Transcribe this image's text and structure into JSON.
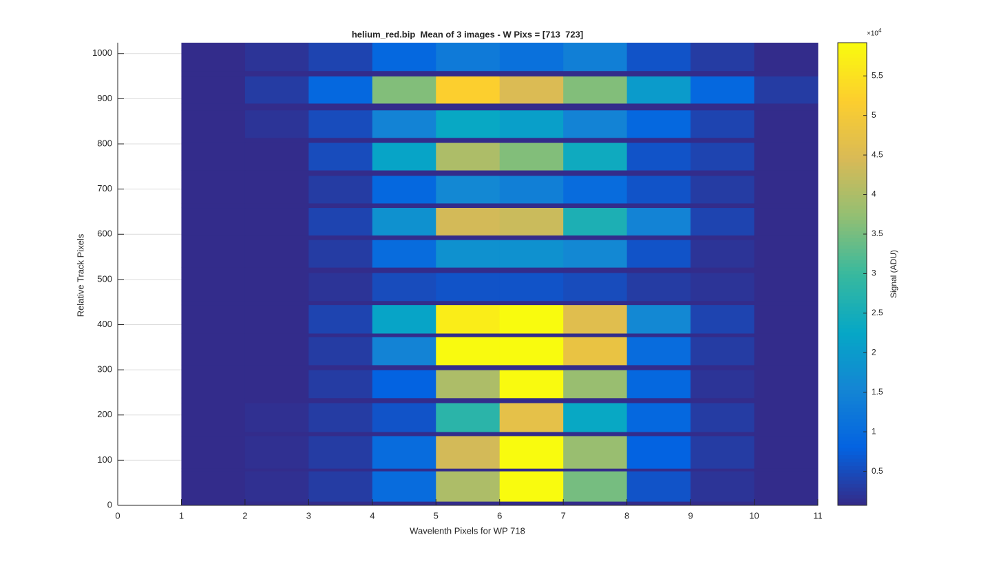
{
  "chart_data": {
    "type": "heatmap",
    "title": "helium_red.bip  Mean of 3 images - W Pixs = [713  723]",
    "x_label": "Wavelenth Pixels for WP 718",
    "y_label": "Relative Track Pixels",
    "colorbar_label": "Signal (ADU)",
    "colorbar_multiplier": "×10",
    "colorbar_exponent": "4",
    "x_bins": [
      1,
      2,
      3,
      4,
      5,
      6,
      7,
      8,
      9,
      10,
      11
    ],
    "y_bins": [
      0,
      9,
      76,
      82,
      154,
      163,
      227,
      238,
      300,
      311,
      373,
      381,
      444,
      453,
      515,
      527,
      588,
      598,
      659,
      669,
      730,
      742,
      803,
      814,
      875,
      890,
      950,
      962,
      1024
    ],
    "values": [
      [
        1000,
        1000,
        1000,
        1000,
        1000,
        1000,
        1000,
        1000,
        1000,
        1000
      ],
      [
        1000,
        1500,
        3000,
        10000,
        40000,
        60000,
        35000,
        6000,
        2000,
        1000
      ],
      [
        1000,
        1000,
        1000,
        1000,
        1000,
        1000,
        1000,
        1000,
        1000,
        1000
      ],
      [
        1000,
        1500,
        3000,
        10000,
        44000,
        60000,
        38000,
        8000,
        3000,
        1000
      ],
      [
        1000,
        1000,
        1000,
        1000,
        1000,
        1000,
        1000,
        1000,
        1000,
        1000
      ],
      [
        1000,
        1500,
        3000,
        6000,
        28000,
        47000,
        23000,
        9000,
        3000,
        1000
      ],
      [
        1000,
        1000,
        1000,
        1000,
        1000,
        1000,
        1000,
        1000,
        1000,
        1000
      ],
      [
        1000,
        1000,
        3000,
        8000,
        40000,
        59000,
        38000,
        9000,
        2000,
        1000
      ],
      [
        1000,
        1000,
        1000,
        1000,
        1000,
        1000,
        1000,
        1000,
        1000,
        1000
      ],
      [
        1000,
        1000,
        3000,
        15000,
        59000,
        60000,
        48000,
        10000,
        3000,
        1000
      ],
      [
        1000,
        1000,
        1000,
        1000,
        1000,
        1000,
        1000,
        1000,
        1000,
        1000
      ],
      [
        1000,
        1000,
        4000,
        22000,
        57000,
        60000,
        46000,
        16000,
        4000,
        1000
      ],
      [
        1000,
        1000,
        1000,
        1000,
        1000,
        1000,
        1000,
        1000,
        1000,
        1000
      ],
      [
        1000,
        1000,
        2000,
        5000,
        6000,
        6000,
        5000,
        3000,
        2000,
        1000
      ],
      [
        1000,
        1000,
        1000,
        1000,
        1000,
        1000,
        1000,
        1000,
        1000,
        1000
      ],
      [
        1000,
        1000,
        3000,
        10000,
        18000,
        18000,
        16000,
        6000,
        2000,
        1000
      ],
      [
        1000,
        1000,
        1000,
        1000,
        1000,
        1000,
        1000,
        1000,
        1000,
        1000
      ],
      [
        1000,
        1000,
        4000,
        18000,
        44000,
        43000,
        26000,
        15000,
        4000,
        1000
      ],
      [
        1000,
        1000,
        1000,
        1000,
        1000,
        1000,
        1000,
        1000,
        1000,
        1000
      ],
      [
        1000,
        1000,
        3000,
        9000,
        16000,
        14000,
        10000,
        6000,
        3000,
        1000
      ],
      [
        1000,
        1000,
        1000,
        1000,
        1000,
        1000,
        1000,
        1000,
        1000,
        1000
      ],
      [
        1000,
        1000,
        5000,
        22000,
        40000,
        36000,
        24000,
        6000,
        4000,
        1000
      ],
      [
        1000,
        1000,
        1000,
        1000,
        1000,
        1000,
        1000,
        1000,
        1000,
        1000
      ],
      [
        1000,
        2000,
        5000,
        15000,
        23000,
        21000,
        15000,
        9000,
        4000,
        1000
      ],
      [
        1000,
        1000,
        1000,
        1000,
        1000,
        1000,
        1000,
        1000,
        1000,
        1000
      ],
      [
        1000,
        3000,
        9000,
        36000,
        52000,
        45000,
        36000,
        20000,
        9000,
        3000
      ],
      [
        1000,
        1000,
        1000,
        1000,
        1000,
        1000,
        1000,
        1000,
        1000,
        1000
      ],
      [
        1000,
        2000,
        4000,
        9000,
        13000,
        11000,
        14000,
        6000,
        3000,
        1000
      ]
    ],
    "colormap": [
      "#352a87",
      "#0363e1",
      "#1485d4",
      "#06a7c6",
      "#38b99e",
      "#92bf73",
      "#d9ba56",
      "#fcce2e",
      "#f9fb0e"
    ],
    "xlim": [
      0,
      11
    ],
    "xticks": [
      0,
      1,
      2,
      3,
      4,
      5,
      6,
      7,
      8,
      9,
      10,
      11
    ],
    "ylim": [
      0,
      1024
    ],
    "yticks": [
      0,
      100,
      200,
      300,
      400,
      500,
      600,
      700,
      800,
      900,
      1000
    ],
    "clim": [
      700,
      59200
    ],
    "cticks": [
      {
        "value": 5000,
        "label": "0.5"
      },
      {
        "value": 10000,
        "label": "1"
      },
      {
        "value": 15000,
        "label": "1.5"
      },
      {
        "value": 20000,
        "label": "2"
      },
      {
        "value": 25000,
        "label": "2.5"
      },
      {
        "value": 30000,
        "label": "3"
      },
      {
        "value": 35000,
        "label": "3.5"
      },
      {
        "value": 40000,
        "label": "4"
      },
      {
        "value": 45000,
        "label": "4.5"
      },
      {
        "value": 50000,
        "label": "5"
      },
      {
        "value": 55000,
        "label": "5.5"
      }
    ],
    "grid": true
  }
}
